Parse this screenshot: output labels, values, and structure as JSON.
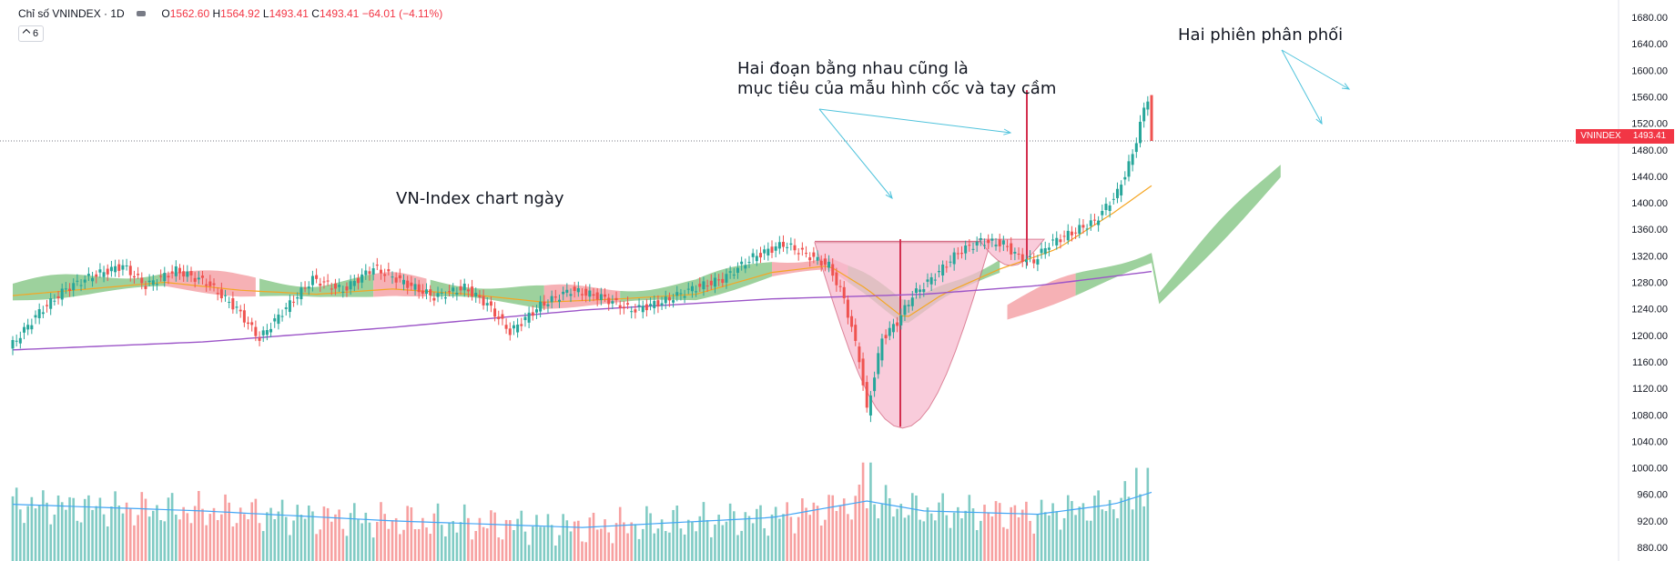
{
  "header": {
    "symbol_label": "Chỉ số VNINDEX · 1D",
    "o_label": "O",
    "o_value": "1562.60",
    "h_label": "H",
    "h_value": "1564.92",
    "l_label": "L",
    "l_value": "1493.41",
    "c_label": "C",
    "c_value": "1493.41",
    "change": "−64.01 (−4.11%)"
  },
  "indicator_toggle": {
    "count": "6"
  },
  "annotations": {
    "title_note": "VN-Index chart ngày",
    "cup_line1": "Hai đoạn bằng nhau cũng là",
    "cup_line2": "mục tiêu của mẫu hình cốc và tay cầm",
    "distribution": "Hai phiên phân phối"
  },
  "price_tag": {
    "symbol": "VNINDEX",
    "value": "1493.41"
  },
  "colors": {
    "up": "#26a69a",
    "down": "#ef5350",
    "up_volume": "#80cbc4",
    "down_volume": "#f7a0a0",
    "ma_orange": "#f5a623",
    "ma_purple": "#9c55c8",
    "volume_ma": "#42a5f5",
    "cloud_green": "#8cc98c",
    "cloud_red": "#f4a3a8",
    "cup_fill": "#f8bbd0",
    "annotation_arrow": "#4fc3dc"
  },
  "chart_data": {
    "type": "candlestick",
    "title": "Chỉ số VNINDEX · 1D",
    "y_axis": {
      "ticks": [
        880,
        920,
        960,
        1000,
        1040,
        1080,
        1120,
        1160,
        1200,
        1240,
        1280,
        1320,
        1360,
        1400,
        1440,
        1480,
        1520,
        1560,
        1600,
        1640,
        1680
      ],
      "ylim": [
        860,
        1690
      ]
    },
    "last_close": 1493.41,
    "sessions": 300,
    "price_path": [
      [
        0,
        1180
      ],
      [
        8,
        1235
      ],
      [
        15,
        1270
      ],
      [
        22,
        1290
      ],
      [
        30,
        1305
      ],
      [
        36,
        1275
      ],
      [
        44,
        1298
      ],
      [
        52,
        1280
      ],
      [
        60,
        1240
      ],
      [
        66,
        1195
      ],
      [
        72,
        1235
      ],
      [
        80,
        1285
      ],
      [
        88,
        1268
      ],
      [
        96,
        1302
      ],
      [
        104,
        1280
      ],
      [
        112,
        1258
      ],
      [
        120,
        1272
      ],
      [
        126,
        1247
      ],
      [
        132,
        1205
      ],
      [
        140,
        1245
      ],
      [
        148,
        1268
      ],
      [
        156,
        1258
      ],
      [
        164,
        1238
      ],
      [
        172,
        1250
      ],
      [
        180,
        1270
      ],
      [
        188,
        1285
      ],
      [
        196,
        1318
      ],
      [
        204,
        1338
      ],
      [
        210,
        1322
      ],
      [
        216,
        1305
      ],
      [
        220,
        1255
      ],
      [
        224,
        1165
      ],
      [
        226,
        1085
      ],
      [
        228,
        1140
      ],
      [
        230,
        1195
      ],
      [
        234,
        1220
      ],
      [
        238,
        1260
      ],
      [
        244,
        1290
      ],
      [
        250,
        1325
      ],
      [
        256,
        1342
      ],
      [
        262,
        1338
      ],
      [
        266,
        1318
      ],
      [
        270,
        1312
      ],
      [
        274,
        1338
      ],
      [
        280,
        1355
      ],
      [
        286,
        1372
      ],
      [
        292,
        1415
      ],
      [
        296,
        1472
      ],
      [
        298,
        1520
      ],
      [
        300,
        1558
      ],
      [
        301,
        1493
      ]
    ],
    "ma_orange_path": [
      [
        0,
        1260
      ],
      [
        20,
        1270
      ],
      [
        40,
        1280
      ],
      [
        60,
        1268
      ],
      [
        80,
        1262
      ],
      [
        100,
        1270
      ],
      [
        120,
        1262
      ],
      [
        140,
        1250
      ],
      [
        160,
        1255
      ],
      [
        180,
        1262
      ],
      [
        200,
        1295
      ],
      [
        215,
        1305
      ],
      [
        225,
        1270
      ],
      [
        235,
        1225
      ],
      [
        245,
        1262
      ],
      [
        260,
        1300
      ],
      [
        275,
        1330
      ],
      [
        290,
        1385
      ],
      [
        301,
        1430
      ]
    ],
    "ma_purple_path": [
      [
        0,
        1178
      ],
      [
        50,
        1190
      ],
      [
        100,
        1212
      ],
      [
        150,
        1238
      ],
      [
        200,
        1255
      ],
      [
        240,
        1262
      ],
      [
        270,
        1275
      ],
      [
        301,
        1297
      ]
    ],
    "volume_base": 880,
    "volume_ma_path": [
      [
        0,
        945
      ],
      [
        50,
        935
      ],
      [
        100,
        920
      ],
      [
        150,
        910
      ],
      [
        200,
        925
      ],
      [
        225,
        950
      ],
      [
        240,
        935
      ],
      [
        270,
        930
      ],
      [
        290,
        945
      ],
      [
        301,
        965
      ]
    ]
  }
}
